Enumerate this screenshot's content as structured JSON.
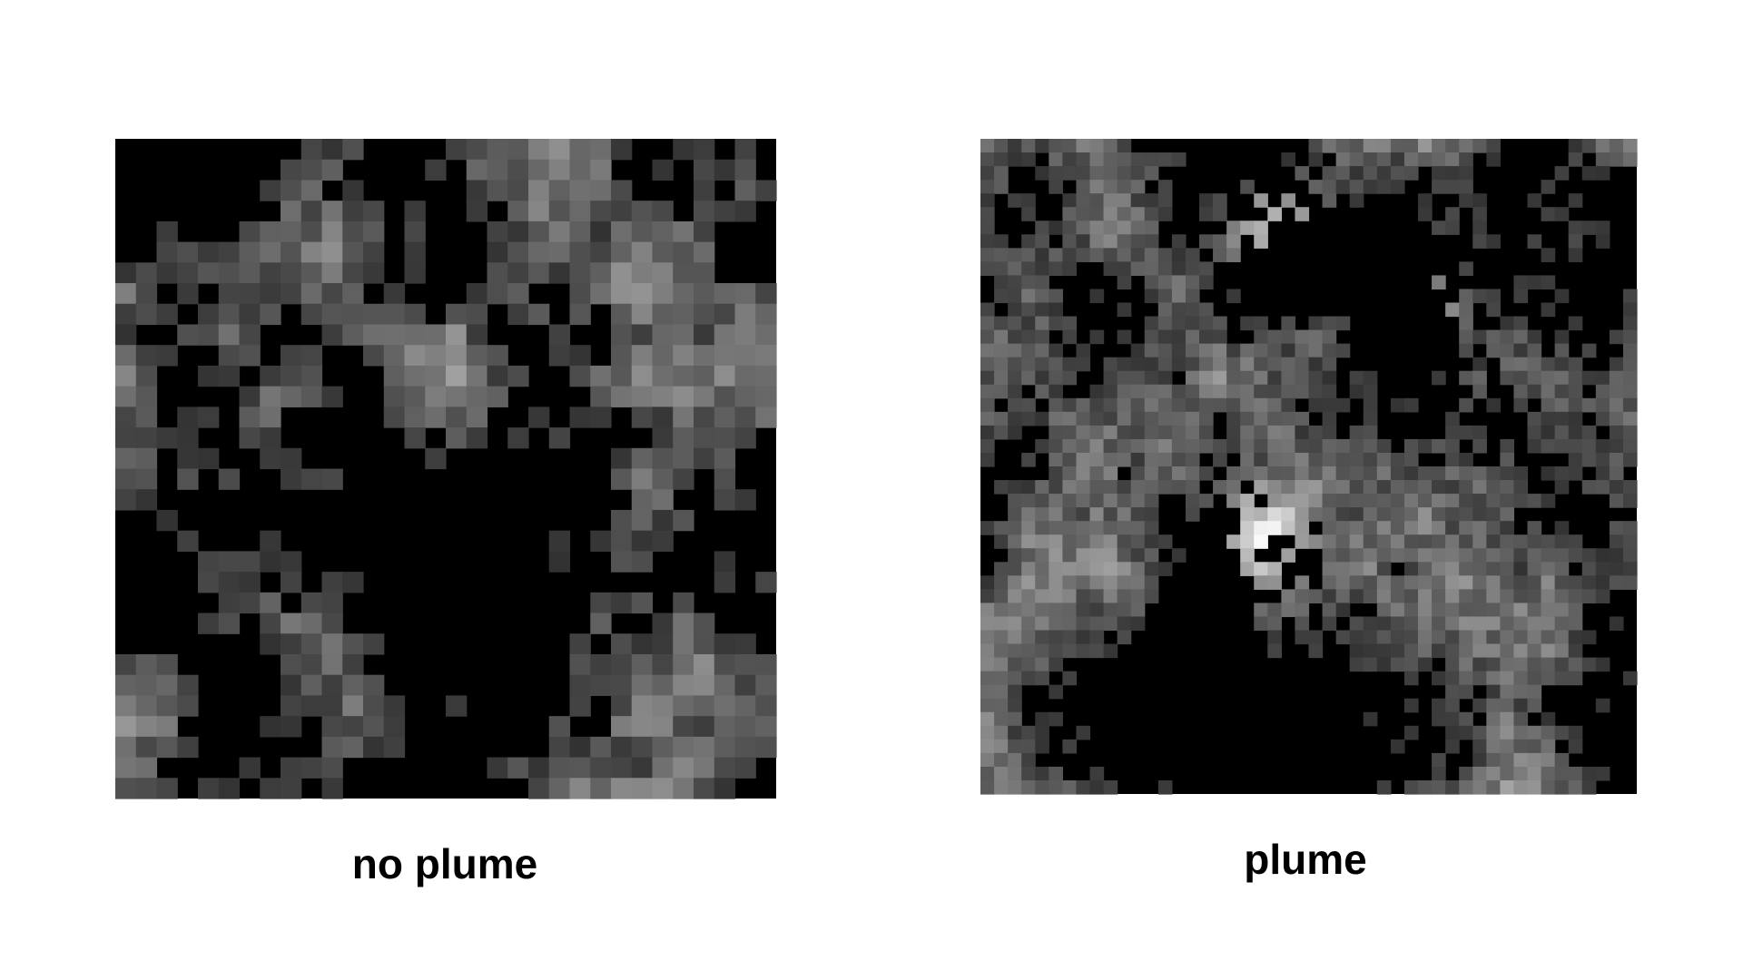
{
  "panels": [
    {
      "label": "no plume"
    },
    {
      "label": "plume"
    }
  ]
}
